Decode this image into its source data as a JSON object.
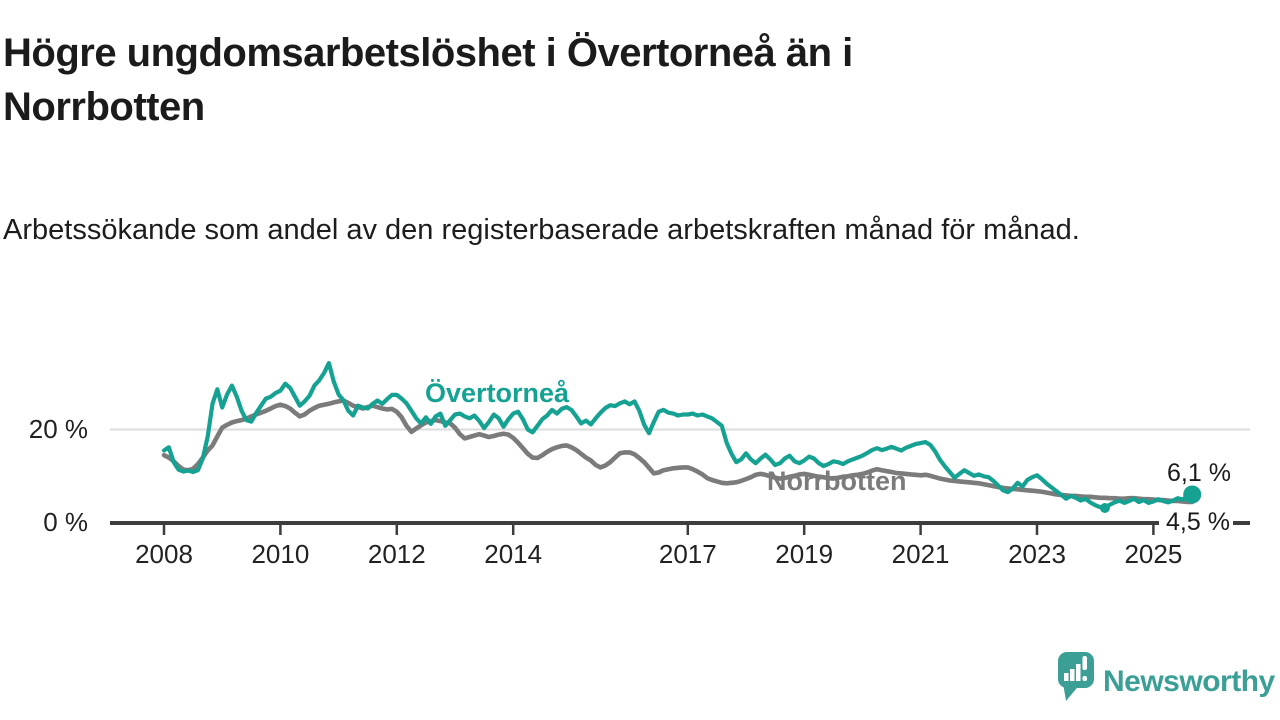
{
  "header": {
    "title": "Högre ungdomsarbetslöshet i Övertorneå än i Norrbotten",
    "subtitle": "Arbetssökande som andel av den registerbaserade arbetskraften månad för månad."
  },
  "chart_data": {
    "type": "line",
    "unit": "%",
    "frequency": "monthly",
    "x_start": "2008-01",
    "x_end": "2025-09",
    "grid": "single horizontal gridline at 20 %",
    "legend_position": "inline labels on lines",
    "ylim": [
      0,
      36
    ],
    "y_ticks": [
      {
        "value": 0,
        "label": "0 %"
      },
      {
        "value": 20,
        "label": "20 %"
      }
    ],
    "x_tick_labels": [
      "2008",
      "2010",
      "2012",
      "2014",
      "2017",
      "2019",
      "2021",
      "2023",
      "2025"
    ],
    "series": [
      {
        "name": "Övertorneå",
        "color": "#16a293",
        "end_value": 6.1,
        "end_label": "6,1 %",
        "values": [
          15.5,
          16.2,
          13.0,
          11.4,
          11.0,
          11.2,
          10.9,
          11.3,
          13.8,
          18.5,
          25.5,
          28.6,
          24.7,
          27.5,
          29.4,
          27.0,
          24.0,
          22.0,
          21.7,
          23.5,
          25.1,
          26.6,
          27.0,
          27.8,
          28.3,
          29.8,
          28.9,
          27.0,
          25.1,
          26.0,
          27.2,
          29.4,
          30.5,
          32.1,
          34.2,
          30.2,
          27.5,
          26.2,
          24.0,
          23.0,
          25.1,
          24.7,
          24.5,
          25.5,
          26.2,
          25.5,
          26.5,
          27.4,
          27.4,
          26.6,
          25.6,
          24.0,
          22.4,
          21.3,
          22.6,
          21.2,
          22.8,
          23.4,
          20.8,
          22.0,
          23.2,
          23.4,
          22.8,
          22.4,
          23.0,
          21.8,
          20.3,
          21.6,
          23.2,
          22.4,
          20.6,
          22.2,
          23.4,
          23.8,
          22.2,
          20.0,
          19.4,
          20.8,
          22.2,
          23.0,
          24.2,
          23.4,
          24.4,
          24.8,
          24.2,
          22.8,
          21.3,
          21.9,
          21.1,
          22.4,
          23.6,
          24.6,
          25.2,
          25.0,
          25.6,
          26.0,
          25.4,
          26.0,
          24.0,
          21.0,
          19.2,
          21.6,
          23.8,
          24.2,
          23.6,
          23.4,
          23.0,
          23.2,
          23.2,
          23.4,
          23.0,
          23.2,
          22.8,
          22.4,
          21.6,
          20.8,
          17.2,
          14.8,
          13.0,
          13.6,
          14.9,
          13.6,
          12.8,
          13.8,
          14.6,
          13.6,
          12.4,
          12.8,
          13.8,
          14.4,
          13.2,
          12.8,
          13.4,
          14.2,
          13.8,
          12.8,
          12.2,
          12.6,
          13.2,
          13.0,
          12.6,
          13.2,
          13.6,
          14.0,
          14.4,
          15.0,
          15.6,
          16.0,
          15.6,
          15.9,
          16.3,
          15.9,
          15.5,
          16.1,
          16.5,
          16.9,
          17.1,
          17.3,
          16.7,
          15.3,
          13.5,
          12.1,
          10.9,
          9.7,
          10.5,
          11.3,
          10.7,
          10.1,
          10.4,
          10.0,
          9.8,
          9.0,
          8.0,
          7.0,
          6.6,
          7.4,
          8.6,
          7.8,
          9.2,
          9.8,
          10.2,
          9.4,
          8.4,
          7.6,
          6.8,
          6.0,
          5.2,
          5.8,
          5.4,
          4.8,
          5.2,
          4.4,
          3.8,
          3.4,
          3.2,
          3.9,
          4.4,
          4.8,
          4.3,
          4.7,
          5.2,
          4.5,
          4.9,
          4.3,
          4.6,
          5.1,
          4.7,
          4.4,
          4.8,
          5.3,
          5.0,
          5.7,
          6.1
        ]
      },
      {
        "name": "Norrbotten",
        "color": "#7b7b7b",
        "end_value": 4.5,
        "end_label": "4,5 %",
        "values": [
          14.5,
          14.0,
          13.2,
          12.2,
          11.4,
          11.3,
          11.6,
          12.6,
          14.0,
          15.5,
          16.6,
          18.5,
          20.4,
          21.0,
          21.5,
          21.8,
          22.0,
          22.3,
          22.8,
          23.2,
          23.6,
          24.0,
          24.5,
          25.0,
          25.3,
          25.0,
          24.5,
          23.6,
          22.8,
          23.2,
          24.0,
          24.6,
          25.1,
          25.3,
          25.5,
          25.8,
          26.0,
          26.2,
          25.7,
          25.1,
          24.8,
          24.5,
          24.8,
          25.1,
          24.8,
          24.5,
          24.3,
          24.4,
          23.8,
          22.6,
          20.8,
          19.5,
          20.2,
          20.9,
          21.5,
          21.8,
          22.0,
          21.8,
          21.5,
          21.3,
          20.4,
          19.0,
          18.1,
          18.4,
          18.7,
          19.0,
          18.7,
          18.4,
          18.6,
          18.9,
          19.1,
          18.9,
          18.2,
          17.2,
          16.0,
          14.8,
          14.0,
          13.9,
          14.5,
          15.2,
          15.8,
          16.2,
          16.5,
          16.6,
          16.2,
          15.6,
          14.8,
          14.0,
          13.4,
          12.4,
          11.9,
          12.3,
          13.0,
          14.0,
          14.9,
          15.1,
          15.1,
          14.7,
          13.9,
          13.0,
          11.8,
          10.6,
          10.8,
          11.3,
          11.5,
          11.7,
          11.8,
          11.9,
          11.9,
          11.5,
          11.0,
          10.4,
          9.6,
          9.2,
          8.9,
          8.6,
          8.5,
          8.6,
          8.7,
          9.0,
          9.4,
          9.8,
          10.3,
          10.5,
          10.3,
          10.0,
          9.7,
          9.5,
          9.6,
          9.9,
          10.1,
          10.4,
          10.5,
          10.3,
          10.1,
          9.9,
          9.8,
          9.6,
          9.5,
          9.7,
          9.9,
          10.0,
          10.2,
          10.3,
          10.5,
          10.8,
          11.2,
          11.5,
          11.3,
          11.1,
          10.9,
          10.7,
          10.6,
          10.5,
          10.4,
          10.3,
          10.2,
          10.3,
          10.1,
          9.8,
          9.5,
          9.3,
          9.1,
          9.0,
          8.9,
          8.8,
          8.7,
          8.6,
          8.5,
          8.3,
          8.1,
          7.9,
          7.7,
          7.5,
          7.4,
          7.3,
          7.2,
          7.1,
          7.0,
          6.9,
          6.8,
          6.7,
          6.5,
          6.3,
          6.1,
          6.0,
          5.9,
          5.8,
          5.8,
          5.7,
          5.6,
          5.6,
          5.5,
          5.4,
          5.4,
          5.3,
          5.3,
          5.2,
          5.2,
          5.3,
          5.3,
          5.2,
          5.1,
          5.1,
          5.0,
          4.9,
          4.9,
          4.8,
          4.7,
          4.7,
          4.6,
          4.5,
          4.5
        ]
      }
    ],
    "markers": [
      {
        "series_index": 0,
        "month_index": 194,
        "value": 3.2,
        "radius": 5
      },
      {
        "series_index": 0,
        "month_index": 212,
        "value": 6.1,
        "radius": 9
      }
    ]
  },
  "branding": {
    "logo_text": "Newsworthy",
    "logo_icon": "newsworthy-speech-bubble-chart-icon",
    "logo_color": "#3c9f96"
  }
}
